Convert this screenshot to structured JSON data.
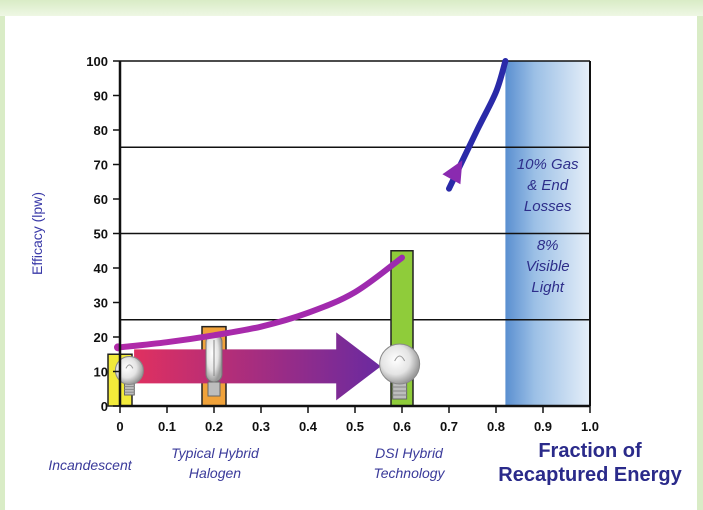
{
  "chart_data": {
    "type": "bar",
    "ylabel": "Efficacy (lpw)",
    "xlabel_lines": [
      "Fraction of",
      "Recaptured Energy"
    ],
    "xlim": [
      0,
      1.0
    ],
    "ylim": [
      0,
      100
    ],
    "x_ticks": [
      "0",
      "0.1",
      "0.2",
      "0.3",
      "0.4",
      "0.5",
      "0.6",
      "0.7",
      "0.8",
      "0.9",
      "1.0"
    ],
    "y_ticks": [
      "0",
      "10",
      "20",
      "30",
      "40",
      "50",
      "60",
      "70",
      "80",
      "90",
      "100"
    ],
    "reference_lines_y": [
      25,
      50,
      75
    ],
    "bars": [
      {
        "x": 0.0,
        "value": 15,
        "label_lines": [
          "Incandescent"
        ],
        "color": "#f2ea3a"
      },
      {
        "x": 0.2,
        "value": 23,
        "label_lines": [
          "Typical Hybrid",
          "Halogen"
        ],
        "color": "#f0a23a"
      },
      {
        "x": 0.6,
        "value": 45,
        "label_lines": [
          "DSI Hybrid",
          "Technology"
        ],
        "color": "#8fcc3a"
      }
    ],
    "curve": [
      {
        "x": 0.0,
        "y": 17
      },
      {
        "x": 0.1,
        "y": 18.5
      },
      {
        "x": 0.2,
        "y": 20.5
      },
      {
        "x": 0.3,
        "y": 23
      },
      {
        "x": 0.4,
        "y": 27
      },
      {
        "x": 0.5,
        "y": 33
      },
      {
        "x": 0.6,
        "y": 43
      },
      {
        "x": 0.7,
        "y": 63
      },
      {
        "x": 0.76,
        "y": 80
      },
      {
        "x": 0.8,
        "y": 91
      },
      {
        "x": 0.82,
        "y": 100
      }
    ],
    "loss_region": {
      "x_start": 0.82,
      "x_end": 1.0,
      "annotations": [
        {
          "lines": [
            "10% Gas",
            "& End",
            "Losses"
          ]
        },
        {
          "lines": [
            "8%",
            "Visible",
            "Light"
          ]
        }
      ]
    },
    "colors": {
      "curve_start": "#b02aa8",
      "curve_end": "#2a2aa8",
      "arrow_start": "#e03060",
      "arrow_end": "#6a2aa0",
      "loss_region": "#6ea0d8"
    }
  }
}
